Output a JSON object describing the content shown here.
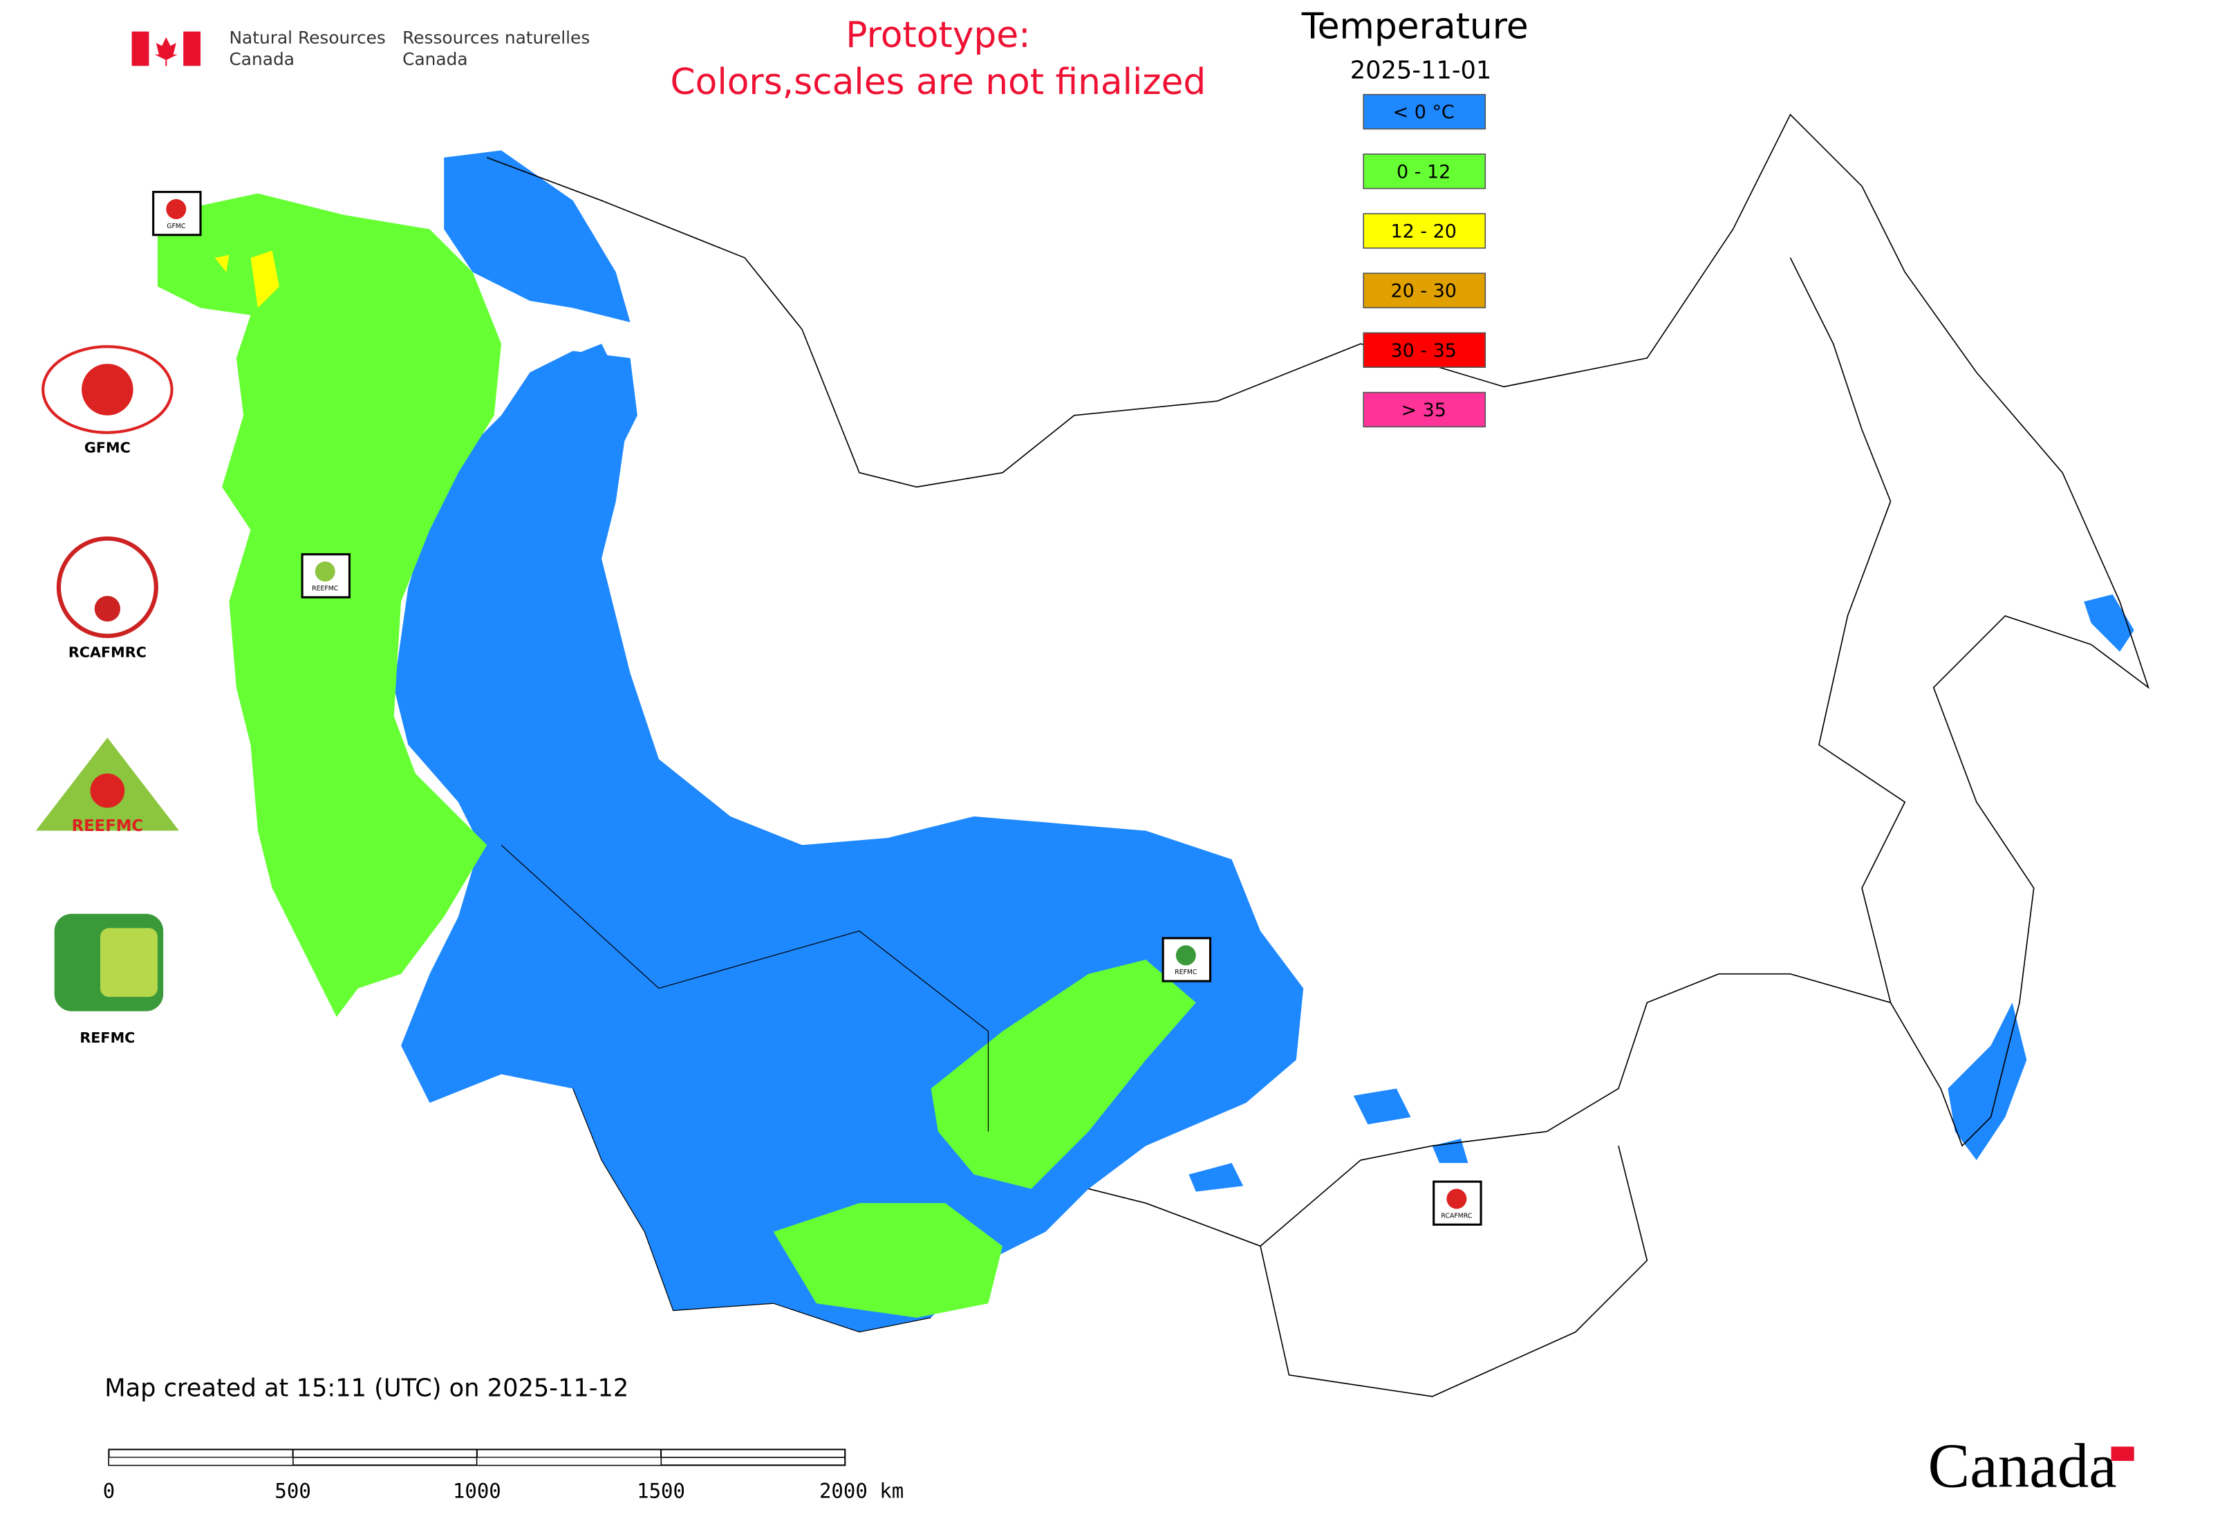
{
  "header": {
    "agency_en": [
      "Natural Resources",
      "Canada"
    ],
    "agency_fr": [
      "Ressources naturelles",
      "Canada"
    ],
    "notice": [
      "Prototype:",
      "Colors,scales are not finalized"
    ]
  },
  "legend": {
    "title": "Temperature",
    "date": "2025-11-01",
    "items": [
      {
        "label": "< 0 °C",
        "color": "#1e88ff"
      },
      {
        "label": "0 - 12",
        "color": "#66ff33"
      },
      {
        "label": "12 - 20",
        "color": "#ffff00"
      },
      {
        "label": "20 - 30",
        "color": "#e0a000"
      },
      {
        "label": "30 - 35",
        "color": "#ff0000"
      },
      {
        "label": "> 35",
        "color": "#ff3399"
      }
    ]
  },
  "logos": [
    {
      "label": "GFMC"
    },
    {
      "label": "RCAFMRC"
    },
    {
      "label": "REEFMC"
    },
    {
      "label": "REFMC"
    }
  ],
  "map_markers": [
    {
      "label": "GFMC"
    },
    {
      "label": "REEFMC"
    },
    {
      "label": "REFMC"
    },
    {
      "label": "RCAFMRC"
    }
  ],
  "footer": {
    "created": "Map created at 15:11 (UTC) on 2025-11-12",
    "scale_labels": [
      "0",
      "500",
      "1000",
      "1500",
      "2000 km"
    ],
    "wordmark": "Canada"
  }
}
